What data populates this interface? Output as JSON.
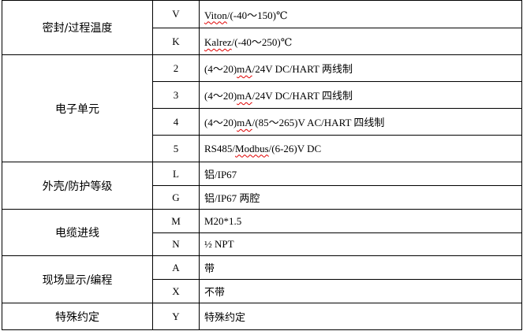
{
  "groups": [
    {
      "category": "密封/过程温度",
      "rows": [
        {
          "code": "V",
          "pre": "",
          "spell": "Viton",
          "post": "/(-40～150)℃"
        },
        {
          "code": "K",
          "pre": "",
          "spell": "Kalrez",
          "post": "/(-40～250)℃"
        }
      ]
    },
    {
      "category": "电子单元",
      "rows": [
        {
          "code": "2",
          "pre": "(4～20)",
          "spell": "mA",
          "post": "/24V DC/HART 两线制"
        },
        {
          "code": "3",
          "pre": "(4～20)",
          "spell": "mA",
          "post": "/24V DC/HART 四线制"
        },
        {
          "code": "4",
          "pre": "(4～20)",
          "spell": "mA",
          "post": "/(85～265)V AC/HART 四线制"
        },
        {
          "code": "5",
          "pre": "RS485/",
          "spell": "Modbus",
          "post": "/(6-26)V DC"
        }
      ]
    },
    {
      "category": "外壳/防护等级",
      "rows": [
        {
          "code": "L",
          "pre": "铝/IP67",
          "spell": "",
          "post": ""
        },
        {
          "code": "G",
          "pre": "铝/IP67 两腔",
          "spell": "",
          "post": ""
        }
      ]
    },
    {
      "category": "电缆进线",
      "rows": [
        {
          "code": "M",
          "pre": "M20*1.5",
          "spell": "",
          "post": ""
        },
        {
          "code": "N",
          "pre": "½ NPT",
          "spell": "",
          "post": ""
        }
      ]
    },
    {
      "category": "现场显示/编程",
      "rows": [
        {
          "code": "A",
          "pre": "带",
          "spell": "",
          "post": ""
        },
        {
          "code": "X",
          "pre": "不带",
          "spell": "",
          "post": ""
        }
      ]
    },
    {
      "category": "特殊约定",
      "rows": [
        {
          "code": "Y",
          "pre": "特殊约定",
          "spell": "",
          "post": ""
        }
      ]
    }
  ]
}
